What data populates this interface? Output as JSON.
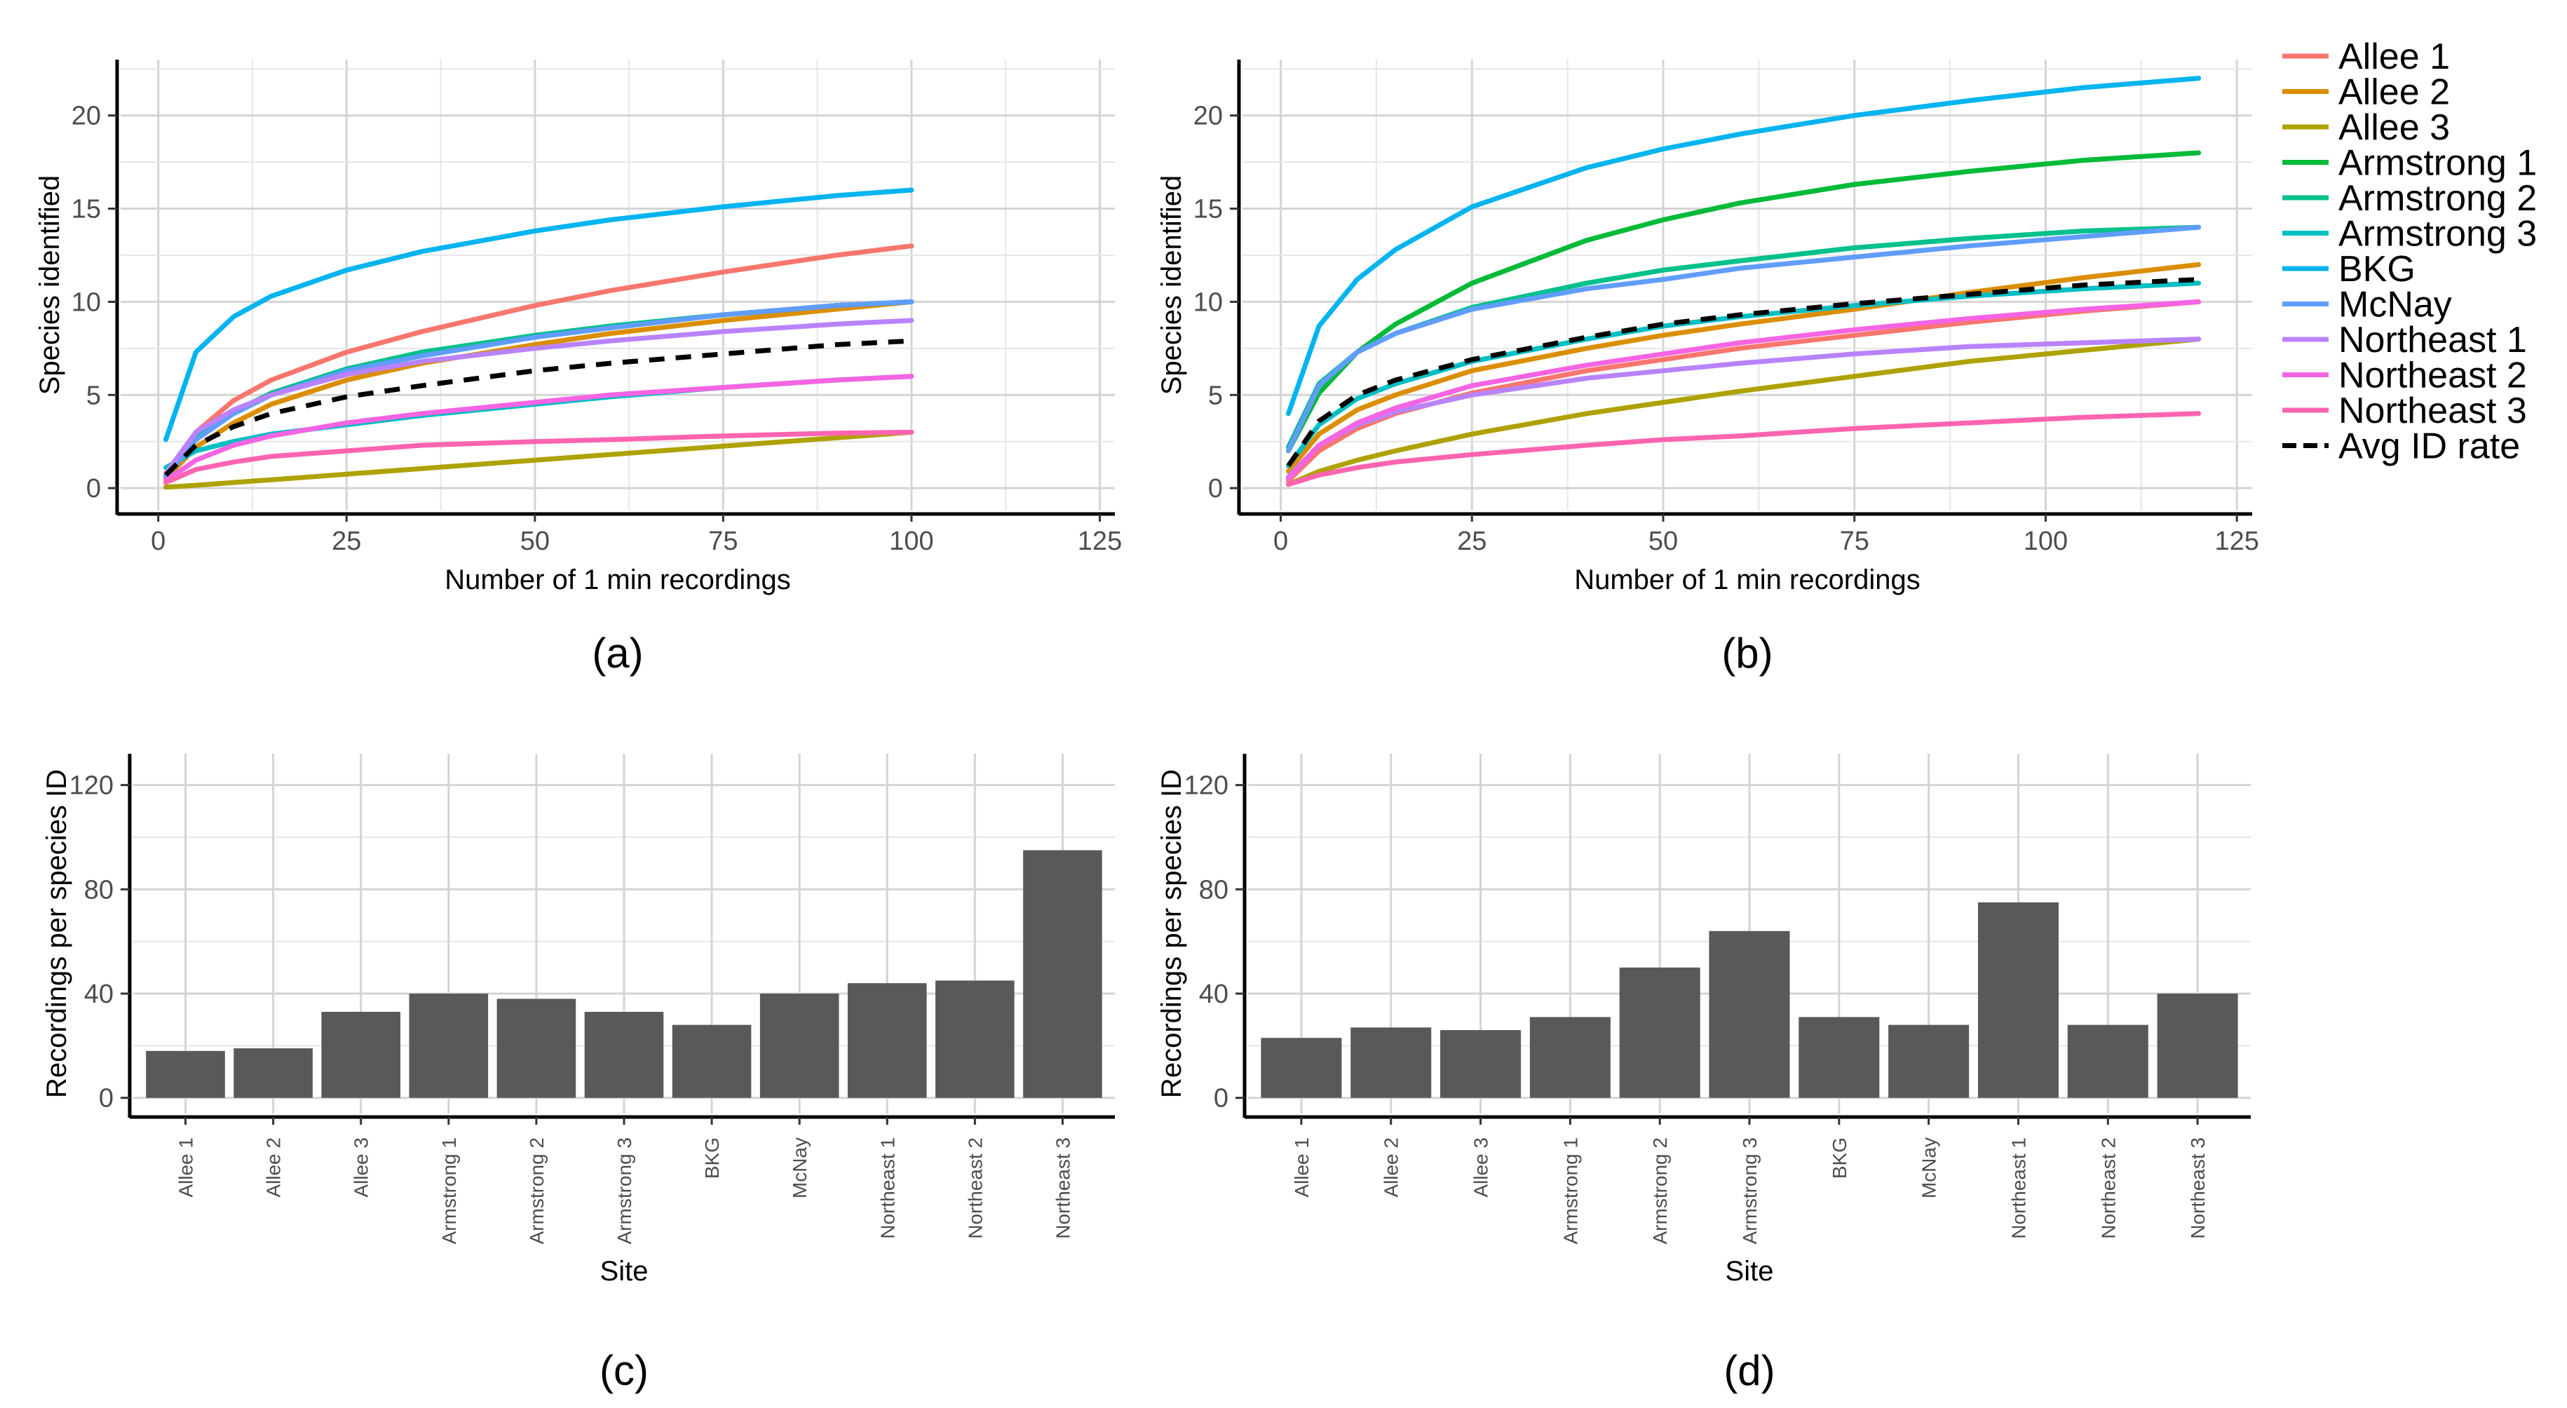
{
  "chart_data": [
    {
      "type": "line",
      "panel_label": "(a)",
      "xlabel": "Number of 1 min recordings",
      "ylabel": "Species identified",
      "xlim": [
        -5,
        127
      ],
      "ylim": [
        -1.2,
        23
      ],
      "xticks": [
        0,
        25,
        50,
        75,
        100,
        125
      ],
      "yticks": [
        0,
        5,
        10,
        15,
        20
      ],
      "grid": true,
      "series": [
        {
          "name": "Allee 1",
          "color": "#F8766D",
          "x": [
            1,
            5,
            10,
            15,
            25,
            35,
            50,
            60,
            75,
            90,
            100
          ],
          "values": [
            0.7,
            3.0,
            4.7,
            5.8,
            7.3,
            8.4,
            9.8,
            10.6,
            11.6,
            12.5,
            13.0
          ]
        },
        {
          "name": "Allee 2",
          "color": "#DB8E00",
          "x": [
            1,
            5,
            10,
            15,
            25,
            35,
            50,
            60,
            75,
            90,
            100
          ],
          "values": [
            0.5,
            2.2,
            3.5,
            4.5,
            5.8,
            6.7,
            7.7,
            8.3,
            9.0,
            9.6,
            10.0
          ]
        },
        {
          "name": "Allee 3",
          "color": "#AEA200",
          "x": [
            1,
            5,
            10,
            15,
            25,
            35,
            50,
            60,
            75,
            90,
            100
          ],
          "values": [
            0.05,
            0.15,
            0.3,
            0.45,
            0.75,
            1.05,
            1.5,
            1.8,
            2.25,
            2.7,
            3.0
          ]
        },
        {
          "name": "Armstrong 1",
          "color": "#00BA38",
          "x": [
            1,
            5,
            10,
            15,
            25,
            35,
            50,
            60,
            75,
            90,
            100
          ],
          "values": [
            0.6,
            2.6,
            4.0,
            5.0,
            6.3,
            7.1,
            8.1,
            8.7,
            9.3,
            9.8,
            10.0
          ]
        },
        {
          "name": "Armstrong 2",
          "color": "#00C08B",
          "x": [
            1,
            5,
            10,
            15,
            25,
            35,
            50,
            60,
            75,
            90,
            100
          ],
          "values": [
            0.7,
            2.7,
            4.1,
            5.1,
            6.4,
            7.3,
            8.2,
            8.7,
            9.3,
            9.8,
            10.0
          ]
        },
        {
          "name": "Armstrong 3",
          "color": "#00BFC4",
          "x": [
            1,
            5,
            10,
            15,
            25,
            35,
            50,
            60,
            75,
            90,
            100
          ],
          "values": [
            1.1,
            2.0,
            2.5,
            2.9,
            3.4,
            3.9,
            4.5,
            4.9,
            5.4,
            5.8,
            6.0
          ]
        },
        {
          "name": "BKG",
          "color": "#00B4F0",
          "x": [
            1,
            5,
            10,
            15,
            25,
            35,
            50,
            60,
            75,
            90,
            100
          ],
          "values": [
            2.6,
            7.3,
            9.2,
            10.3,
            11.7,
            12.7,
            13.8,
            14.4,
            15.1,
            15.7,
            16.0
          ]
        },
        {
          "name": "McNay",
          "color": "#619CFF",
          "x": [
            1,
            5,
            10,
            15,
            25,
            35,
            50,
            60,
            75,
            90,
            100
          ],
          "values": [
            0.6,
            2.6,
            4.0,
            5.0,
            6.3,
            7.1,
            8.1,
            8.6,
            9.3,
            9.8,
            10.0
          ]
        },
        {
          "name": "Northeast 1",
          "color": "#B983FF",
          "x": [
            1,
            5,
            10,
            15,
            25,
            35,
            50,
            60,
            75,
            90,
            100
          ],
          "values": [
            0.8,
            3.0,
            4.2,
            5.0,
            6.1,
            6.8,
            7.5,
            7.9,
            8.4,
            8.8,
            9.0
          ]
        },
        {
          "name": "Northeast 2",
          "color": "#F564E3",
          "x": [
            1,
            5,
            10,
            15,
            25,
            35,
            50,
            60,
            75,
            90,
            100
          ],
          "values": [
            0.4,
            1.5,
            2.3,
            2.8,
            3.5,
            4.0,
            4.6,
            5.0,
            5.4,
            5.8,
            6.0
          ]
        },
        {
          "name": "Northeast 3",
          "color": "#FF64B0",
          "x": [
            1,
            5,
            10,
            15,
            25,
            35,
            50,
            60,
            75,
            90,
            100
          ],
          "values": [
            0.3,
            1.0,
            1.4,
            1.7,
            2.0,
            2.3,
            2.5,
            2.6,
            2.8,
            2.95,
            3.0
          ]
        },
        {
          "name": "Avg ID rate",
          "color": "#000000",
          "dashed": true,
          "x": [
            1,
            5,
            10,
            15,
            25,
            35,
            50,
            60,
            75,
            90,
            100
          ],
          "values": [
            0.7,
            2.3,
            3.3,
            4.0,
            4.9,
            5.5,
            6.3,
            6.7,
            7.2,
            7.7,
            7.9
          ]
        }
      ]
    },
    {
      "type": "line",
      "panel_label": "(b)",
      "xlabel": "Number of 1 min recordings",
      "ylabel": "Species identified",
      "xlim": [
        -5,
        127
      ],
      "ylim": [
        -1.2,
        23
      ],
      "xticks": [
        0,
        25,
        50,
        75,
        100,
        125
      ],
      "yticks": [
        0,
        5,
        10,
        15,
        20
      ],
      "grid": true,
      "series": [
        {
          "name": "Allee 1",
          "color": "#F8766D",
          "x": [
            1,
            5,
            10,
            15,
            25,
            40,
            50,
            60,
            75,
            90,
            105,
            120
          ],
          "values": [
            0.4,
            2.0,
            3.2,
            4.0,
            5.1,
            6.3,
            6.9,
            7.5,
            8.2,
            8.9,
            9.5,
            10.0
          ]
        },
        {
          "name": "Allee 2",
          "color": "#DB8E00",
          "x": [
            1,
            5,
            10,
            15,
            25,
            40,
            50,
            60,
            75,
            90,
            105,
            120
          ],
          "values": [
            0.9,
            2.9,
            4.2,
            5.0,
            6.3,
            7.5,
            8.2,
            8.8,
            9.6,
            10.5,
            11.3,
            12.0
          ]
        },
        {
          "name": "Allee 3",
          "color": "#AEA200",
          "x": [
            1,
            5,
            10,
            15,
            25,
            40,
            50,
            60,
            75,
            90,
            105,
            120
          ],
          "values": [
            0.2,
            0.9,
            1.5,
            2.0,
            2.9,
            4.0,
            4.6,
            5.2,
            6.0,
            6.8,
            7.4,
            8.0
          ]
        },
        {
          "name": "Armstrong 1",
          "color": "#00BA38",
          "x": [
            1,
            5,
            10,
            15,
            25,
            40,
            50,
            60,
            75,
            90,
            105,
            120
          ],
          "values": [
            2.0,
            5.1,
            7.3,
            8.8,
            11.0,
            13.3,
            14.4,
            15.3,
            16.3,
            17.0,
            17.6,
            18.0
          ]
        },
        {
          "name": "Armstrong 2",
          "color": "#00C08B",
          "x": [
            1,
            5,
            10,
            15,
            25,
            40,
            50,
            60,
            75,
            90,
            105,
            120
          ],
          "values": [
            2.2,
            5.6,
            7.3,
            8.3,
            9.7,
            11.0,
            11.7,
            12.2,
            12.9,
            13.4,
            13.8,
            14.0
          ]
        },
        {
          "name": "Armstrong 3",
          "color": "#00BFC4",
          "x": [
            1,
            5,
            10,
            15,
            25,
            40,
            50,
            60,
            75,
            90,
            105,
            120
          ],
          "values": [
            1.2,
            3.4,
            4.8,
            5.6,
            6.8,
            8.0,
            8.7,
            9.2,
            9.8,
            10.3,
            10.7,
            11.0
          ]
        },
        {
          "name": "BKG",
          "color": "#00B4F0",
          "x": [
            1,
            5,
            10,
            15,
            25,
            40,
            50,
            60,
            75,
            90,
            105,
            120
          ],
          "values": [
            4.0,
            8.7,
            11.2,
            12.8,
            15.1,
            17.2,
            18.2,
            19.0,
            20.0,
            20.8,
            21.5,
            22.0
          ]
        },
        {
          "name": "McNay",
          "color": "#619CFF",
          "x": [
            1,
            5,
            10,
            15,
            25,
            40,
            50,
            60,
            75,
            90,
            105,
            120
          ],
          "values": [
            2.0,
            5.5,
            7.3,
            8.3,
            9.6,
            10.7,
            11.2,
            11.8,
            12.4,
            13.0,
            13.5,
            14.0
          ]
        },
        {
          "name": "Northeast 1",
          "color": "#B983FF",
          "x": [
            1,
            5,
            10,
            15,
            25,
            40,
            50,
            60,
            75,
            90,
            105,
            120
          ],
          "values": [
            0.6,
            2.3,
            3.4,
            4.1,
            5.0,
            5.9,
            6.3,
            6.7,
            7.2,
            7.6,
            7.8,
            8.0
          ]
        },
        {
          "name": "Northeast 2",
          "color": "#F564E3",
          "x": [
            1,
            5,
            10,
            15,
            25,
            40,
            50,
            60,
            75,
            90,
            105,
            120
          ],
          "values": [
            0.5,
            2.3,
            3.5,
            4.3,
            5.5,
            6.6,
            7.2,
            7.8,
            8.5,
            9.1,
            9.6,
            10.0
          ]
        },
        {
          "name": "Northeast 3",
          "color": "#FF64B0",
          "x": [
            1,
            5,
            10,
            15,
            25,
            40,
            50,
            60,
            75,
            90,
            105,
            120
          ],
          "values": [
            0.2,
            0.7,
            1.1,
            1.4,
            1.8,
            2.3,
            2.6,
            2.8,
            3.2,
            3.5,
            3.8,
            4.0
          ]
        },
        {
          "name": "Avg ID rate",
          "color": "#000000",
          "dashed": true,
          "x": [
            1,
            5,
            10,
            15,
            25,
            40,
            50,
            60,
            75,
            90,
            105,
            120
          ],
          "values": [
            1.2,
            3.6,
            5.0,
            5.8,
            6.9,
            8.1,
            8.8,
            9.3,
            9.9,
            10.4,
            10.9,
            11.2
          ]
        }
      ]
    },
    {
      "type": "bar",
      "panel_label": "(c)",
      "xlabel": "Site",
      "ylabel": "Recordings per species ID",
      "ylim": [
        -6,
        132
      ],
      "yticks": [
        0,
        40,
        80,
        120
      ],
      "grid": true,
      "bar_color": "#595959",
      "categories": [
        "Allee 1",
        "Allee 2",
        "Allee 3",
        "Armstrong 1",
        "Armstrong 2",
        "Armstrong 3",
        "BKG",
        "McNay",
        "Northeast 1",
        "Northeast 2",
        "Northeast 3"
      ],
      "values": [
        18,
        19,
        33,
        40,
        38,
        33,
        28,
        40,
        44,
        45,
        95
      ]
    },
    {
      "type": "bar",
      "panel_label": "(d)",
      "xlabel": "Site",
      "ylabel": "Recordings per species ID",
      "ylim": [
        -6,
        132
      ],
      "yticks": [
        0,
        40,
        80,
        120
      ],
      "grid": true,
      "bar_color": "#595959",
      "categories": [
        "Allee 1",
        "Allee 2",
        "Allee 3",
        "Armstrong 1",
        "Armstrong 2",
        "Armstrong 3",
        "BKG",
        "McNay",
        "Northeast 1",
        "Northeast 2",
        "Northeast 3"
      ],
      "values": [
        23,
        27,
        26,
        31,
        50,
        64,
        31,
        28,
        75,
        28,
        40
      ]
    }
  ],
  "legend": {
    "position": "top-right",
    "items": [
      {
        "label": "Allee 1",
        "color": "#F8766D"
      },
      {
        "label": "Allee 2",
        "color": "#DB8E00"
      },
      {
        "label": "Allee 3",
        "color": "#AEA200"
      },
      {
        "label": "Armstrong 1",
        "color": "#00BA38"
      },
      {
        "label": "Armstrong 2",
        "color": "#00C08B"
      },
      {
        "label": "Armstrong 3",
        "color": "#00BFC4"
      },
      {
        "label": "BKG",
        "color": "#00B4F0"
      },
      {
        "label": "McNay",
        "color": "#619CFF"
      },
      {
        "label": "Northeast 1",
        "color": "#B983FF"
      },
      {
        "label": "Northeast 2",
        "color": "#F564E3"
      },
      {
        "label": "Northeast 3",
        "color": "#FF64B0"
      },
      {
        "label": "Avg ID rate",
        "color": "#000000",
        "dashed": true
      }
    ]
  }
}
